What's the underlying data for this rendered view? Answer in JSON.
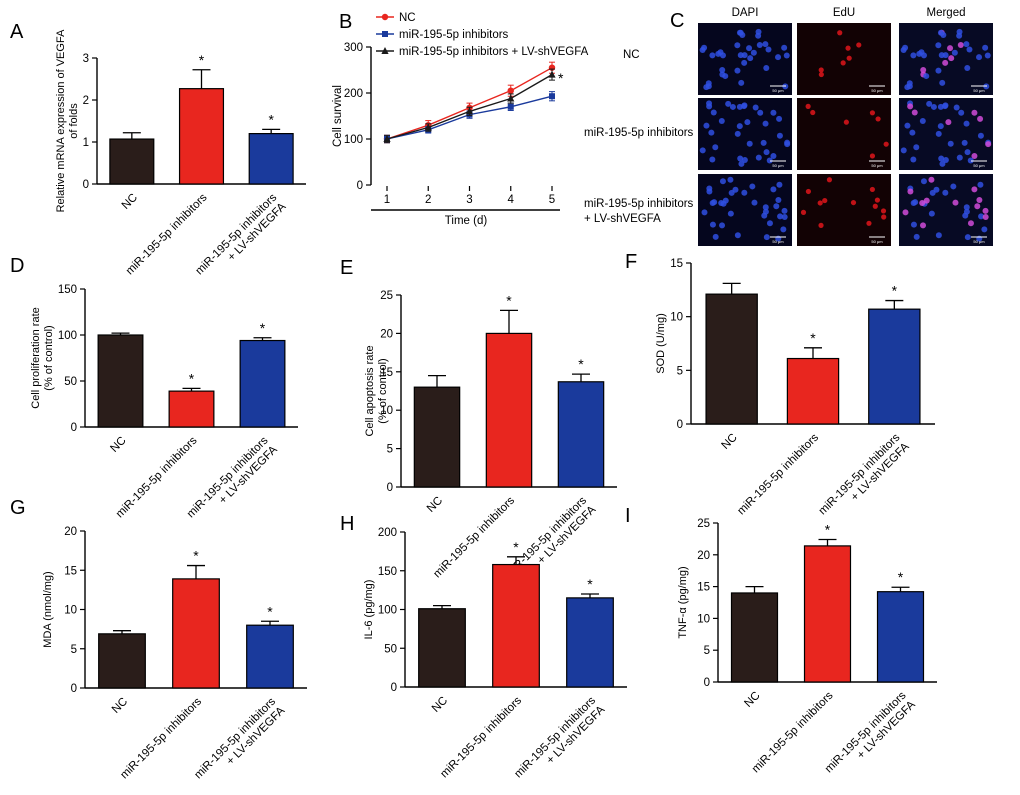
{
  "colors": {
    "nc": "#2a1d1a",
    "inhibitor": "#e8261f",
    "shvegfa": "#1a3a9c",
    "nc_line": "#e8261f",
    "inh_line": "#1a3a9c",
    "combo_line": "#1a1a1a",
    "axis": "#000000",
    "dapi_bg": "#05061e",
    "edu_bg": "#120204",
    "merged_bg": "#070a24",
    "cell_blue": "#2f4fe0",
    "cell_red": "#d4141a",
    "cell_pink": "#d04bd8"
  },
  "groups": [
    "NC",
    "miR-195-5p inhibitors",
    "miR-195-5p inhibitors\n+ LV-shVEGFA"
  ],
  "chart_data": [
    {
      "id": "A",
      "panel_label": "A",
      "type": "bar",
      "categories": [
        "NC",
        "miR-195-5p inhibitors",
        "miR-195-5p inhibitors\n+ LV-shVEGFA"
      ],
      "values": [
        1.07,
        2.27,
        1.2
      ],
      "errors": [
        0.15,
        0.45,
        0.1
      ],
      "significance": [
        "",
        "*",
        "*"
      ],
      "ylabel": "Relative mRNA expression of VEGFA\nof folds",
      "ylim": [
        0,
        3
      ],
      "yticks": [
        0,
        1,
        2,
        3
      ]
    },
    {
      "id": "B",
      "panel_label": "B",
      "type": "line",
      "x": [
        1,
        2,
        3,
        4,
        5
      ],
      "series": [
        {
          "name": "NC",
          "values": [
            100,
            130,
            168,
            205,
            255
          ],
          "errors": [
            8,
            10,
            10,
            12,
            12
          ]
        },
        {
          "name": "miR-195-5p inhibitors",
          "values": [
            100,
            120,
            153,
            170,
            193
          ],
          "errors": [
            8,
            7,
            8,
            8,
            10
          ]
        },
        {
          "name": "miR-195-5p inhibitors + LV-shVEGFA",
          "values": [
            100,
            125,
            160,
            188,
            240
          ],
          "errors": [
            8,
            8,
            9,
            10,
            12
          ]
        }
      ],
      "significance": "*",
      "xlabel": "Time (d)",
      "ylabel": "Cell survival",
      "ylim": [
        0,
        300
      ],
      "yticks": [
        0,
        100,
        200,
        300
      ]
    },
    {
      "id": "D",
      "panel_label": "D",
      "type": "bar",
      "categories": [
        "NC",
        "miR-195-5p inhibitors",
        "miR-195-5p inhibitors\n+ LV-shVEGFA"
      ],
      "values": [
        100,
        39,
        94
      ],
      "errors": [
        2,
        3,
        3
      ],
      "significance": [
        "",
        "*",
        "*"
      ],
      "ylabel": "Cell proliferation rate\n(% of control)",
      "ylim": [
        0,
        150
      ],
      "yticks": [
        0,
        50,
        100,
        150
      ]
    },
    {
      "id": "E",
      "panel_label": "E",
      "type": "bar",
      "categories": [
        "NC",
        "miR-195-5p inhibitors",
        "miR-195-5p inhibitors\n+ LV-shVEGFA"
      ],
      "values": [
        13,
        20,
        13.7
      ],
      "errors": [
        1.5,
        3,
        1
      ],
      "significance": [
        "",
        "*",
        "*"
      ],
      "ylabel": "Cell apoptosis rate\n(% of control)",
      "ylim": [
        0,
        25
      ],
      "yticks": [
        0,
        5,
        10,
        15,
        20,
        25
      ]
    },
    {
      "id": "F",
      "panel_label": "F",
      "type": "bar",
      "categories": [
        "NC",
        "miR-195-5p inhibitors",
        "miR-195-5p inhibitors\n+ LV-shVEGFA"
      ],
      "values": [
        12.1,
        6.1,
        10.7
      ],
      "errors": [
        1,
        1,
        0.8
      ],
      "significance": [
        "",
        "*",
        "*"
      ],
      "ylabel": "SOD (U/mg)",
      "ylim": [
        0,
        15
      ],
      "yticks": [
        0,
        5,
        10,
        15
      ]
    },
    {
      "id": "G",
      "panel_label": "G",
      "type": "bar",
      "categories": [
        "NC",
        "miR-195-5p inhibitors",
        "miR-195-5p inhibitors\n+ LV-shVEGFA"
      ],
      "values": [
        6.9,
        13.9,
        8
      ],
      "errors": [
        0.4,
        1.7,
        0.5
      ],
      "significance": [
        "",
        "*",
        "*"
      ],
      "ylabel": "MDA (nmol/mg)",
      "ylim": [
        0,
        20
      ],
      "yticks": [
        0,
        5,
        10,
        15,
        20
      ]
    },
    {
      "id": "H",
      "panel_label": "H",
      "type": "bar",
      "categories": [
        "NC",
        "miR-195-5p inhibitors",
        "miR-195-5p inhibitors\n+ LV-shVEGFA"
      ],
      "values": [
        101,
        158,
        115
      ],
      "errors": [
        4,
        10,
        5
      ],
      "significance": [
        "",
        "*",
        "*"
      ],
      "ylabel": "IL-6 (pg/mg)",
      "ylim": [
        0,
        200
      ],
      "yticks": [
        0,
        50,
        100,
        150,
        200
      ]
    },
    {
      "id": "I",
      "panel_label": "I",
      "type": "bar",
      "categories": [
        "NC",
        "miR-195-5p inhibitors",
        "miR-195-5p inhibitors\n+ LV-shVEGFA"
      ],
      "values": [
        14,
        21.4,
        14.2
      ],
      "errors": [
        1,
        1,
        0.7
      ],
      "significance": [
        "",
        "*",
        "*"
      ],
      "ylabel": "TNF-α (pg/mg)",
      "ylim": [
        0,
        25
      ],
      "yticks": [
        0,
        5,
        10,
        15,
        20,
        25
      ]
    }
  ],
  "micrographs": {
    "panel_label": "C",
    "columns": [
      "DAPI",
      "EdU",
      "Merged"
    ],
    "rows": [
      "NC",
      "miR-195-5p inhibitors",
      "miR-195-5p inhibitors\n+ LV-shVEGFA"
    ],
    "scale_bar": "50 μm"
  }
}
